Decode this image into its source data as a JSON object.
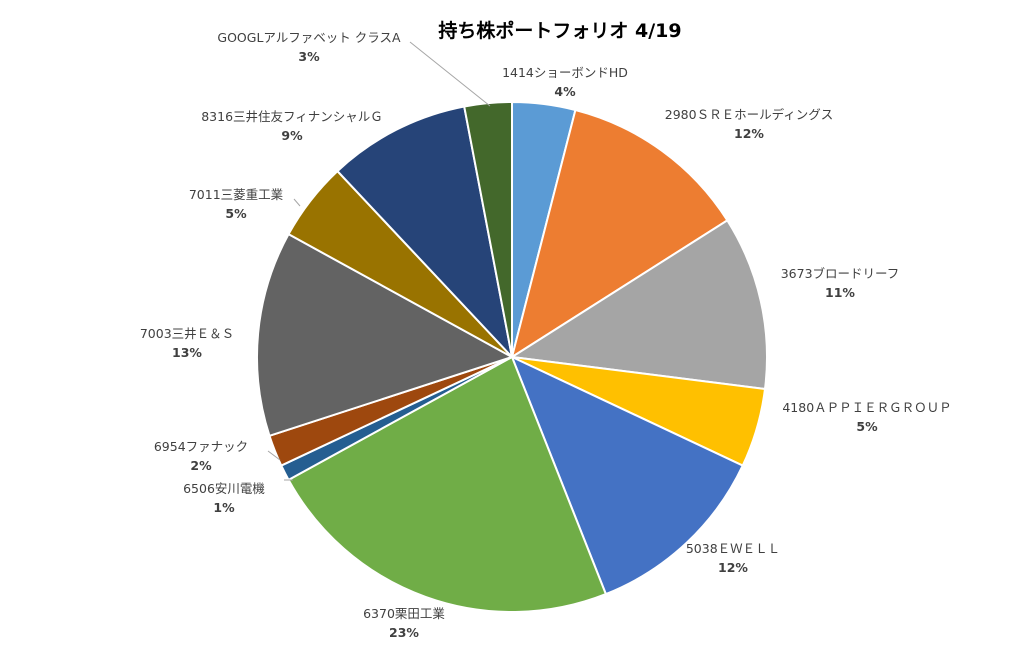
{
  "chart_data": {
    "type": "pie",
    "title": "持ち株ポートフォリオ 4/19",
    "slices": [
      {
        "label": "1414ショーボンドHD",
        "value": 4,
        "value_label": "4%",
        "color": "#5b9bd5",
        "icon": "pie-slice"
      },
      {
        "label": "2980ＳＲＥホールディングス",
        "value": 12,
        "value_label": "12%",
        "color": "#ed7d31",
        "icon": "pie-slice"
      },
      {
        "label": "3673ブロードリーフ",
        "value": 11,
        "value_label": "11%",
        "color": "#a5a5a5",
        "icon": "pie-slice"
      },
      {
        "label": "4180ＡＰＰＩＥＲＧＲＯＵＰ",
        "value": 5,
        "value_label": "5%",
        "color": "#ffc000",
        "icon": "pie-slice"
      },
      {
        "label": "5038ＥＷＥＬＬ",
        "value": 12,
        "value_label": "12%",
        "color": "#4472c4",
        "icon": "pie-slice"
      },
      {
        "label": "6370栗田工業",
        "value": 23,
        "value_label": "23%",
        "color": "#70ad47",
        "icon": "pie-slice"
      },
      {
        "label": "6506安川電機",
        "value": 1,
        "value_label": "1%",
        "color": "#255e91",
        "icon": "pie-slice"
      },
      {
        "label": "6954ファナック",
        "value": 2,
        "value_label": "2%",
        "color": "#9e480e",
        "icon": "pie-slice"
      },
      {
        "label": "7003三井Ｅ＆Ｓ",
        "value": 13,
        "value_label": "13%",
        "color": "#636363",
        "icon": "pie-slice"
      },
      {
        "label": "7011三菱重工業",
        "value": 5,
        "value_label": "5%",
        "color": "#997300",
        "icon": "pie-slice"
      },
      {
        "label": "8316三井住友フィナンシャルＧ",
        "value": 9,
        "value_label": "9%",
        "color": "#264478",
        "icon": "pie-slice"
      },
      {
        "label": "GOOGLアルファベット クラスA",
        "value": 3,
        "value_label": "3%",
        "color": "#43682b",
        "icon": "pie-slice"
      }
    ],
    "legend": "none"
  }
}
